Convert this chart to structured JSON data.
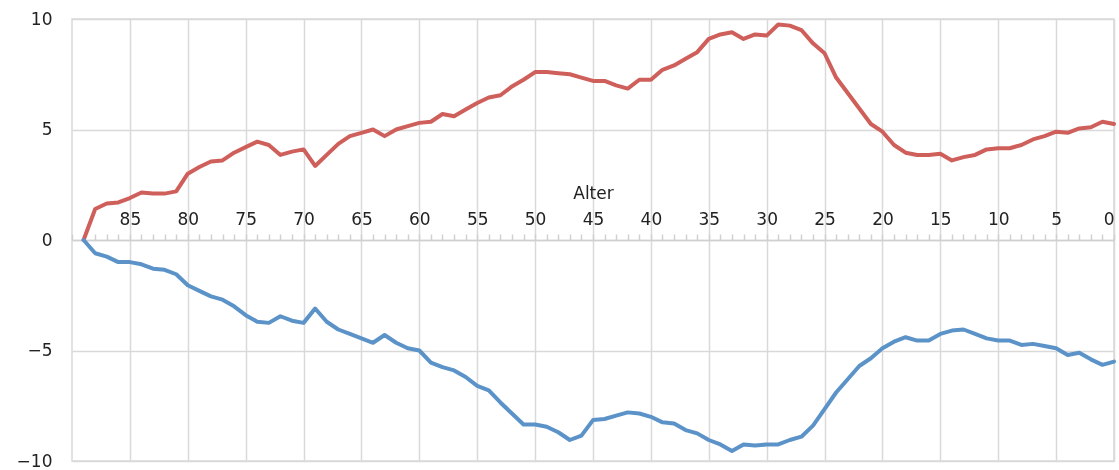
{
  "chart_data": {
    "type": "line",
    "xlabel": "Alter",
    "x": [
      89,
      88,
      87,
      86,
      85,
      84,
      83,
      82,
      81,
      80,
      79,
      78,
      77,
      76,
      75,
      74,
      73,
      72,
      71,
      70,
      69,
      68,
      67,
      66,
      65,
      64,
      63,
      62,
      61,
      60,
      59,
      58,
      57,
      56,
      55,
      54,
      53,
      52,
      51,
      50,
      49,
      48,
      47,
      46,
      45,
      44,
      43,
      42,
      41,
      40,
      39,
      38,
      37,
      36,
      35,
      34,
      33,
      32,
      31,
      30,
      29,
      28,
      27,
      26,
      25,
      24,
      23,
      22,
      21,
      20,
      19,
      18,
      17,
      16,
      15,
      14,
      13,
      12,
      11,
      10,
      9,
      8,
      7,
      6,
      5,
      4,
      3,
      2,
      1,
      0
    ],
    "series": [
      {
        "color": "#cf5f5a",
        "values": [
          0,
          1.4,
          1.65,
          1.7,
          1.9,
          2.15,
          2.1,
          2.1,
          2.2,
          3.0,
          3.3,
          3.55,
          3.6,
          3.95,
          4.2,
          4.45,
          4.3,
          3.85,
          4.0,
          4.1,
          3.35,
          3.85,
          4.35,
          4.7,
          4.85,
          5.0,
          4.7,
          5.0,
          5.15,
          5.3,
          5.35,
          5.7,
          5.6,
          5.9,
          6.2,
          6.45,
          6.55,
          6.95,
          7.25,
          7.6,
          7.6,
          7.55,
          7.5,
          7.35,
          7.2,
          7.2,
          7.0,
          6.85,
          7.25,
          7.25,
          7.7,
          7.9,
          8.2,
          8.5,
          9.1,
          9.3,
          9.4,
          9.1,
          9.3,
          9.25,
          9.75,
          9.7,
          9.5,
          8.9,
          8.45,
          7.35,
          6.65,
          5.95,
          5.25,
          4.9,
          4.3,
          3.95,
          3.85,
          3.85,
          3.9,
          3.6,
          3.75,
          3.85,
          4.1,
          4.15,
          4.15,
          4.3,
          4.55,
          4.7,
          4.9,
          4.85,
          5.05,
          5.1,
          5.35,
          5.25
        ]
      },
      {
        "color": "#5b93c9",
        "values": [
          0,
          -0.6,
          -0.75,
          -1.0,
          -1.0,
          -1.1,
          -1.3,
          -1.35,
          -1.55,
          -2.05,
          -2.3,
          -2.55,
          -2.7,
          -3.0,
          -3.4,
          -3.7,
          -3.75,
          -3.45,
          -3.65,
          -3.75,
          -3.1,
          -3.7,
          -4.05,
          -4.25,
          -4.45,
          -4.65,
          -4.3,
          -4.65,
          -4.9,
          -5.0,
          -5.55,
          -5.75,
          -5.9,
          -6.2,
          -6.6,
          -6.8,
          -7.35,
          -7.85,
          -8.35,
          -8.35,
          -8.45,
          -8.7,
          -9.05,
          -8.85,
          -8.15,
          -8.1,
          -7.95,
          -7.8,
          -7.85,
          -8.0,
          -8.25,
          -8.3,
          -8.6,
          -8.75,
          -9.05,
          -9.25,
          -9.55,
          -9.25,
          -9.3,
          -9.25,
          -9.25,
          -9.05,
          -8.9,
          -8.4,
          -7.65,
          -6.9,
          -6.3,
          -5.7,
          -5.35,
          -4.9,
          -4.6,
          -4.4,
          -4.55,
          -4.55,
          -4.25,
          -4.1,
          -4.05,
          -4.25,
          -4.45,
          -4.55,
          -4.55,
          -4.75,
          -4.7,
          -4.8,
          -4.9,
          -5.2,
          -5.1,
          -5.4,
          -5.65,
          -5.5
        ]
      }
    ],
    "xlim": [
      90,
      0
    ],
    "xticks": [
      {
        "value": 90,
        "label": null
      },
      {
        "value": 89,
        "label": null
      },
      {
        "value": 88,
        "label": null
      },
      {
        "value": 87,
        "label": null
      },
      {
        "value": 86,
        "label": null
      },
      85,
      {
        "value": 84,
        "label": null
      },
      {
        "value": 83,
        "label": null
      },
      {
        "value": 82,
        "label": null
      },
      {
        "value": 81,
        "label": null
      },
      80,
      {
        "value": 79,
        "label": null
      },
      {
        "value": 78,
        "label": null
      },
      {
        "value": 77,
        "label": null
      },
      {
        "value": 76,
        "label": null
      },
      75,
      {
        "value": 74,
        "label": null
      },
      {
        "value": 73,
        "label": null
      },
      {
        "value": 72,
        "label": null
      },
      {
        "value": 71,
        "label": null
      },
      70,
      {
        "value": 69,
        "label": null
      },
      {
        "value": 68,
        "label": null
      },
      {
        "value": 67,
        "label": null
      },
      {
        "value": 66,
        "label": null
      },
      65,
      {
        "value": 64,
        "label": null
      },
      {
        "value": 63,
        "label": null
      },
      {
        "value": 62,
        "label": null
      },
      {
        "value": 61,
        "label": null
      },
      60,
      {
        "value": 59,
        "label": null
      },
      {
        "value": 58,
        "label": null
      },
      {
        "value": 57,
        "label": null
      },
      {
        "value": 56,
        "label": null
      },
      55,
      {
        "value": 54,
        "label": null
      },
      {
        "value": 53,
        "label": null
      },
      {
        "value": 52,
        "label": null
      },
      {
        "value": 51,
        "label": null
      },
      50,
      {
        "value": 49,
        "label": null
      },
      {
        "value": 48,
        "label": null
      },
      {
        "value": 47,
        "label": null
      },
      {
        "value": 46,
        "label": null
      },
      45,
      {
        "value": 44,
        "label": null
      },
      {
        "value": 43,
        "label": null
      },
      {
        "value": 42,
        "label": null
      },
      {
        "value": 41,
        "label": null
      },
      40,
      {
        "value": 39,
        "label": null
      },
      {
        "value": 38,
        "label": null
      },
      {
        "value": 37,
        "label": null
      },
      {
        "value": 36,
        "label": null
      },
      35,
      {
        "value": 34,
        "label": null
      },
      {
        "value": 33,
        "label": null
      },
      {
        "value": 32,
        "label": null
      },
      {
        "value": 31,
        "label": null
      },
      30,
      {
        "value": 29,
        "label": null
      },
      {
        "value": 28,
        "label": null
      },
      {
        "value": 27,
        "label": null
      },
      {
        "value": 26,
        "label": null
      },
      25,
      {
        "value": 24,
        "label": null
      },
      {
        "value": 23,
        "label": null
      },
      {
        "value": 22,
        "label": null
      },
      {
        "value": 21,
        "label": null
      },
      20,
      {
        "value": 19,
        "label": null
      },
      {
        "value": 18,
        "label": null
      },
      {
        "value": 17,
        "label": null
      },
      {
        "value": 16,
        "label": null
      },
      15,
      {
        "value": 14,
        "label": null
      },
      {
        "value": 13,
        "label": null
      },
      {
        "value": 12,
        "label": null
      },
      {
        "value": 11,
        "label": null
      },
      10,
      {
        "value": 9,
        "label": null
      },
      {
        "value": 8,
        "label": null
      },
      {
        "value": 7,
        "label": null
      },
      {
        "value": 6,
        "label": null
      },
      5,
      {
        "value": 4,
        "label": null
      },
      {
        "value": 3,
        "label": null
      },
      {
        "value": 2,
        "label": null
      },
      {
        "value": 1,
        "label": null
      },
      0
    ],
    "ylim": [
      -10,
      10
    ],
    "yticks": [
      -10,
      -5,
      0,
      5,
      10
    ],
    "grid": true,
    "marker": "none",
    "line_style": "solid"
  }
}
